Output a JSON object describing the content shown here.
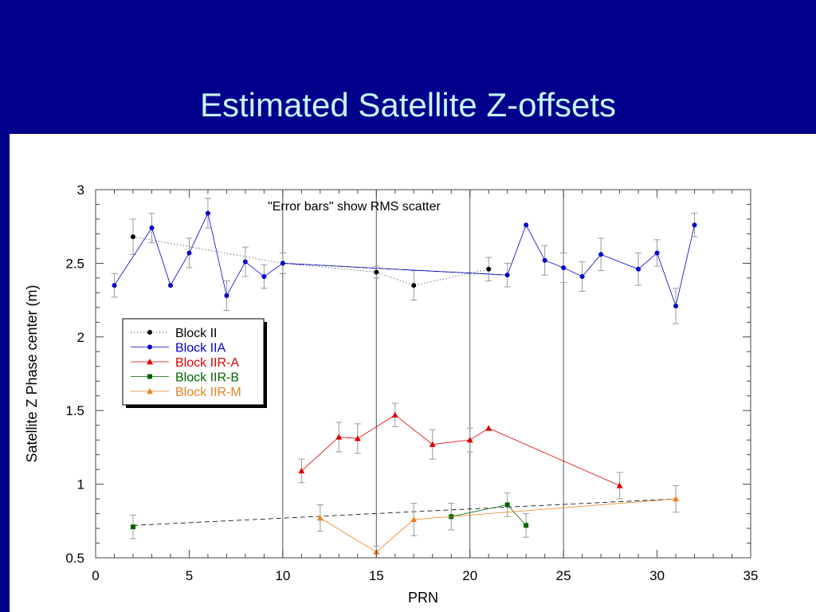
{
  "slide": {
    "title": "Estimated Satellite Z-offsets"
  },
  "chart_data": {
    "type": "line",
    "title": "",
    "xlabel": "PRN",
    "ylabel": "Satellite Z Phase center (m)",
    "annotation": "\"Error bars\" show RMS scatter",
    "xlim": [
      0,
      35
    ],
    "ylim": [
      0.5,
      3
    ],
    "x_ticks": [
      0,
      5,
      10,
      15,
      20,
      25,
      30,
      35
    ],
    "y_ticks": [
      0.5,
      1,
      1.5,
      2,
      2.5,
      3
    ],
    "x_tick_labels": [
      "0",
      "5",
      "10",
      "15",
      "20",
      "25",
      "30",
      "35"
    ],
    "y_tick_labels": [
      "0.5",
      "1",
      "1.5",
      "2",
      "2.5",
      "3"
    ],
    "vertical_reference_lines": [
      10,
      15,
      20,
      25
    ],
    "legend_placement": "left, middle",
    "series": [
      {
        "name": "Block II",
        "color": "#000000",
        "marker": "circle",
        "line_style": "dotted",
        "points": [
          {
            "x": 2,
            "y": 2.68,
            "err": 0.12
          },
          {
            "x": 10,
            "y": 2.5,
            "err": 0.07
          },
          {
            "x": 15,
            "y": 2.44,
            "err": 0.04
          },
          {
            "x": 17,
            "y": 2.35,
            "err": 0.1
          },
          {
            "x": 21,
            "y": 2.46,
            "err": 0.08
          }
        ]
      },
      {
        "name": "Block IIA",
        "color": "#0000cc",
        "marker": "circle",
        "line_style": "solid",
        "points": [
          {
            "x": 1,
            "y": 2.35,
            "err": 0.08
          },
          {
            "x": 3,
            "y": 2.74,
            "err": 0.1
          },
          {
            "x": 4,
            "y": 2.35,
            "err": 0
          },
          {
            "x": 5,
            "y": 2.57,
            "err": 0.1
          },
          {
            "x": 6,
            "y": 2.84,
            "err": 0.1
          },
          {
            "x": 7,
            "y": 2.28,
            "err": 0.1
          },
          {
            "x": 8,
            "y": 2.51,
            "err": 0.1
          },
          {
            "x": 9,
            "y": 2.41,
            "err": 0.08
          },
          {
            "x": 10,
            "y": 2.5,
            "err": 0.07
          },
          {
            "x": 22,
            "y": 2.42,
            "err": 0.08
          },
          {
            "x": 23,
            "y": 2.76,
            "err": 0
          },
          {
            "x": 24,
            "y": 2.52,
            "err": 0.1
          },
          {
            "x": 25,
            "y": 2.47,
            "err": 0.1
          },
          {
            "x": 26,
            "y": 2.41,
            "err": 0.1
          },
          {
            "x": 27,
            "y": 2.56,
            "err": 0.11
          },
          {
            "x": 29,
            "y": 2.46,
            "err": 0.11
          },
          {
            "x": 30,
            "y": 2.57,
            "err": 0.09
          },
          {
            "x": 31,
            "y": 2.21,
            "err": 0.12
          },
          {
            "x": 32,
            "y": 2.76,
            "err": 0.08
          }
        ]
      },
      {
        "name": "Block IIR-A",
        "color": "#dd0000",
        "marker": "triangle",
        "line_style": "solid",
        "points": [
          {
            "x": 11,
            "y": 1.09,
            "err": 0.08
          },
          {
            "x": 13,
            "y": 1.32,
            "err": 0.1
          },
          {
            "x": 14,
            "y": 1.31,
            "err": 0.1
          },
          {
            "x": 16,
            "y": 1.47,
            "err": 0.08
          },
          {
            "x": 18,
            "y": 1.27,
            "err": 0.1
          },
          {
            "x": 20,
            "y": 1.3,
            "err": 0.08
          },
          {
            "x": 21,
            "y": 1.38,
            "err": 0
          },
          {
            "x": 28,
            "y": 0.99,
            "err": 0.09
          }
        ]
      },
      {
        "name": "Block IIR-B",
        "color": "#006400",
        "marker": "square",
        "line_style": "solid",
        "points": [
          {
            "x": 19,
            "y": 0.78,
            "err": 0.09
          },
          {
            "x": 22,
            "y": 0.86,
            "err": 0.08
          },
          {
            "x": 23,
            "y": 0.72,
            "err": 0.08
          }
        ]
      },
      {
        "name": "Block IIR-M",
        "color": "#e8821e",
        "marker": "triangle",
        "line_style": "solid",
        "points": [
          {
            "x": 12,
            "y": 0.77,
            "err": 0.09
          },
          {
            "x": 15,
            "y": 0.54,
            "err": 0.04
          },
          {
            "x": 17,
            "y": 0.76,
            "err": 0.11
          },
          {
            "x": 31,
            "y": 0.9,
            "err": 0.09
          }
        ]
      }
    ],
    "connector_lines": [
      {
        "from": [
          2,
          0.72
        ],
        "to": [
          31,
          0.9
        ],
        "style": "dashed",
        "color": "#000000",
        "marker_at_start": {
          "x": 2,
          "y": 0.71,
          "err": 0.08,
          "series": "Block IIR-B"
        }
      },
      {
        "from": [
          10,
          2.5
        ],
        "to": [
          22,
          2.42
        ],
        "style": "dashed",
        "color": "#000000"
      }
    ]
  }
}
